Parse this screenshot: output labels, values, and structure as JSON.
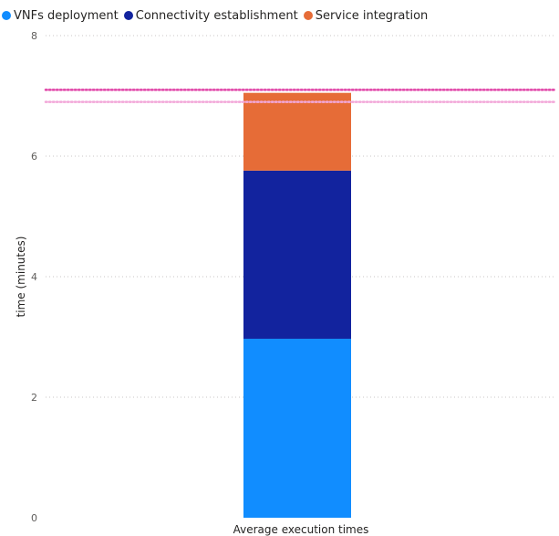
{
  "chart_data": {
    "type": "bar",
    "stacked": true,
    "categories": [
      "Average execution times"
    ],
    "series": [
      {
        "name": "VNFs deployment",
        "values": [
          2.97
        ],
        "color": "#118DFF"
      },
      {
        "name": "Connectivity establishment",
        "values": [
          2.79
        ],
        "color": "#12239E"
      },
      {
        "name": "Service integration",
        "values": [
          1.29
        ],
        "color": "#E66C37"
      }
    ],
    "xlabel": "Average execution times",
    "ylabel": "time (minutes)",
    "ylim": [
      0,
      8
    ],
    "yticks": [
      0,
      2,
      4,
      6,
      8
    ],
    "reference_lines": [
      {
        "value": 7.1,
        "color": "#E044A7",
        "style": "dotted"
      },
      {
        "value": 6.9,
        "color": "#F2A7D9",
        "style": "dotted"
      }
    ],
    "grid": true,
    "gridline_style": "dotted",
    "legend_position": "top-left",
    "legend_marker": "circle"
  }
}
